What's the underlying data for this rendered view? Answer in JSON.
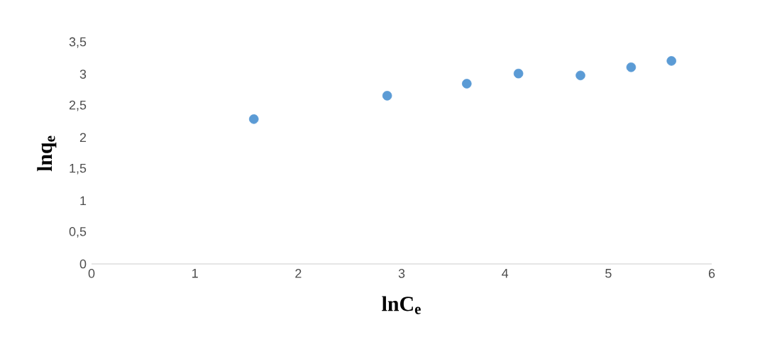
{
  "chart_data": {
    "type": "scatter",
    "xlabel": "lnC$_{e}$",
    "ylabel": "lnq$_{e}$",
    "x": [
      1.57,
      2.86,
      3.63,
      4.13,
      4.73,
      5.22,
      5.61
    ],
    "series": [
      {
        "color": "#5b9bd5",
        "values": [
          2.29,
          2.66,
          2.85,
          3.01,
          2.98,
          3.11,
          3.21
        ]
      }
    ],
    "xlim": [
      0,
      6
    ],
    "xticks": [
      0,
      1,
      2,
      3,
      4,
      5,
      6
    ],
    "ylim": [
      0,
      3.5
    ],
    "yticks": [
      0,
      {
        "value": 0.5,
        "label": "0,5"
      },
      1,
      {
        "value": 1.5,
        "label": "1,5"
      },
      2,
      {
        "value": 2.5,
        "label": "2,5"
      },
      3,
      {
        "value": 3.5,
        "label": "3,5"
      }
    ],
    "grid": false,
    "marker": "circle"
  }
}
